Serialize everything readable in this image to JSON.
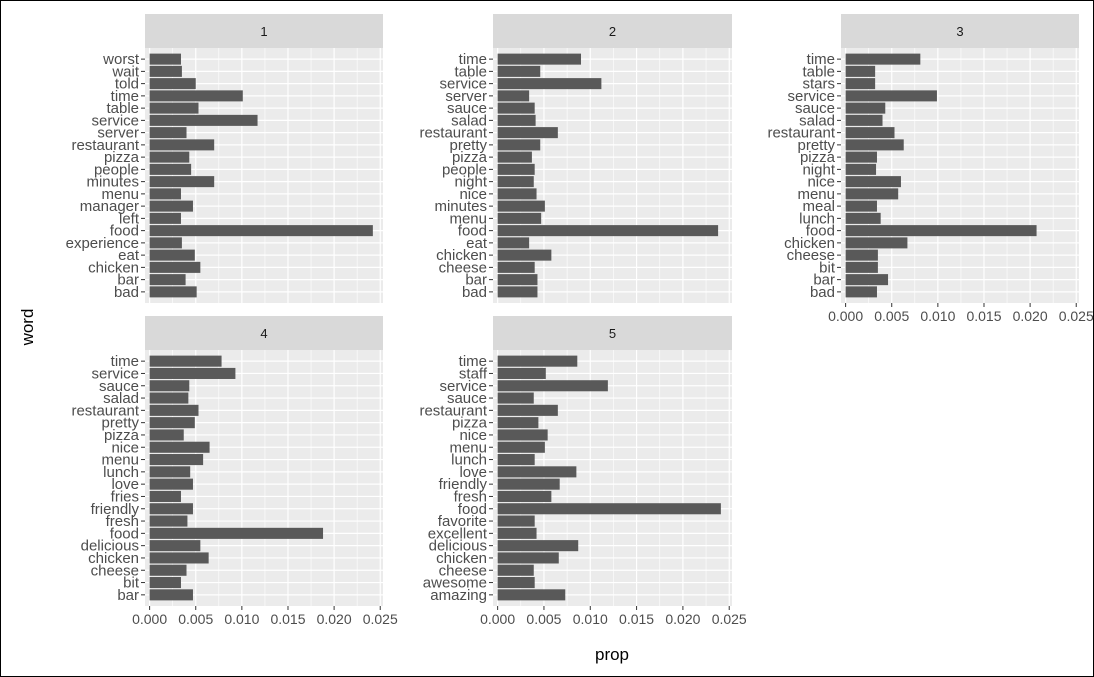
{
  "chart_data": [
    {
      "type": "bar",
      "orientation": "horizontal",
      "panel": "1",
      "categories": [
        "bad",
        "bar",
        "chicken",
        "eat",
        "experience",
        "food",
        "left",
        "manager",
        "menu",
        "minutes",
        "people",
        "pizza",
        "restaurant",
        "server",
        "service",
        "table",
        "time",
        "told",
        "wait",
        "worst"
      ],
      "values": [
        0.0051,
        0.0039,
        0.0055,
        0.0049,
        0.0035,
        0.0242,
        0.0034,
        0.0047,
        0.0034,
        0.007,
        0.0045,
        0.0043,
        0.007,
        0.004,
        0.0117,
        0.0053,
        0.0101,
        0.005,
        0.0035,
        0.0034
      ],
      "xlim": [
        -0.0005,
        0.0253
      ]
    },
    {
      "type": "bar",
      "orientation": "horizontal",
      "panel": "2",
      "categories": [
        "bad",
        "bar",
        "cheese",
        "chicken",
        "eat",
        "food",
        "menu",
        "minutes",
        "nice",
        "night",
        "people",
        "pizza",
        "pretty",
        "restaurant",
        "salad",
        "sauce",
        "server",
        "service",
        "table",
        "time"
      ],
      "values": [
        0.0043,
        0.0043,
        0.004,
        0.0058,
        0.0034,
        0.0238,
        0.0047,
        0.0051,
        0.0042,
        0.0039,
        0.004,
        0.0037,
        0.0046,
        0.0065,
        0.0041,
        0.004,
        0.0034,
        0.0112,
        0.0046,
        0.009
      ],
      "xlim": [
        -0.0005,
        0.0253
      ]
    },
    {
      "type": "bar",
      "orientation": "horizontal",
      "panel": "3",
      "categories": [
        "bad",
        "bar",
        "bit",
        "cheese",
        "chicken",
        "food",
        "lunch",
        "meal",
        "menu",
        "nice",
        "night",
        "pizza",
        "pretty",
        "restaurant",
        "salad",
        "sauce",
        "service",
        "stars",
        "table",
        "time"
      ],
      "values": [
        0.0034,
        0.0046,
        0.0035,
        0.0035,
        0.0067,
        0.0207,
        0.0038,
        0.0034,
        0.0057,
        0.006,
        0.0033,
        0.0034,
        0.0063,
        0.0053,
        0.004,
        0.0043,
        0.0099,
        0.0032,
        0.0032,
        0.0081
      ],
      "xlim": [
        -0.0005,
        0.0253
      ]
    },
    {
      "type": "bar",
      "orientation": "horizontal",
      "panel": "4",
      "categories": [
        "bar",
        "bit",
        "cheese",
        "chicken",
        "delicious",
        "food",
        "fresh",
        "friendly",
        "fries",
        "love",
        "lunch",
        "menu",
        "nice",
        "pizza",
        "pretty",
        "restaurant",
        "salad",
        "sauce",
        "service",
        "time"
      ],
      "values": [
        0.0047,
        0.0034,
        0.004,
        0.0064,
        0.0055,
        0.0188,
        0.0041,
        0.0047,
        0.0034,
        0.0047,
        0.0044,
        0.0058,
        0.0065,
        0.0037,
        0.0049,
        0.0053,
        0.0042,
        0.0043,
        0.0093,
        0.0078
      ],
      "xlim": [
        -0.0005,
        0.0253
      ]
    },
    {
      "type": "bar",
      "orientation": "horizontal",
      "panel": "5",
      "categories": [
        "amazing",
        "awesome",
        "cheese",
        "chicken",
        "delicious",
        "excellent",
        "favorite",
        "food",
        "fresh",
        "friendly",
        "love",
        "lunch",
        "menu",
        "nice",
        "pizza",
        "restaurant",
        "sauce",
        "service",
        "staff",
        "time"
      ],
      "values": [
        0.0073,
        0.004,
        0.0039,
        0.0066,
        0.0087,
        0.0042,
        0.004,
        0.0241,
        0.0058,
        0.0067,
        0.0085,
        0.004,
        0.0051,
        0.0054,
        0.0044,
        0.0065,
        0.0039,
        0.0119,
        0.0052,
        0.0086
      ],
      "xlim": [
        -0.0005,
        0.0253
      ]
    }
  ],
  "axes": {
    "xlabel": "prop",
    "ylabel": "word",
    "xticks": [
      "0.000",
      "0.005",
      "0.010",
      "0.015",
      "0.020",
      "0.025"
    ],
    "tick_values": [
      0,
      0.005,
      0.01,
      0.015,
      0.02,
      0.025
    ]
  },
  "colors": {
    "bar": "#595959",
    "panel_bg": "#ebebeb",
    "strip_bg": "#d9d9d9",
    "grid": "#ffffff",
    "text": "#4d4d4d"
  },
  "grid": true
}
